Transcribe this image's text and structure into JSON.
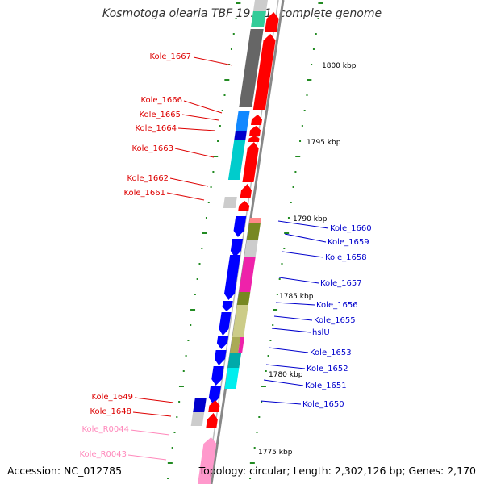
{
  "title": "Kosmotoga olearia TBF 19.5.1, complete genome",
  "footer": {
    "accession": "Accession: NC_012785",
    "topology": "Topology: circular; Length: 2,302,126 bp; Genes: 2,170"
  },
  "scale_labels": [
    "1800 kbp",
    "1795 kbp",
    "1790 kbp",
    "1785 kbp",
    "1780 kbp",
    "1775 kbp"
  ],
  "left_labels": [
    "Kole_1667",
    "Kole_1666",
    "Kole_1665",
    "Kole_1664",
    "Kole_1663",
    "Kole_1662",
    "Kole_1661",
    "Kole_1649",
    "Kole_1648",
    "Kole_R0044",
    "Kole_R0043"
  ],
  "right_labels": [
    "Kole_1660",
    "Kole_1659",
    "Kole_1658",
    "Kole_1657",
    "Kole_1656",
    "Kole_1655",
    "hslU",
    "Kole_1653",
    "Kole_1652",
    "Kole_1651",
    "Kole_1650"
  ],
  "colors": {
    "forward_strand": "#ff0000",
    "reverse_strand": "#0000ff",
    "rna": "#ff99cc",
    "backbone": "#999999",
    "tick": "#228b22",
    "left_label": "#dd0000",
    "right_label": "#0000cc",
    "rna_label": "#ff88bb"
  }
}
